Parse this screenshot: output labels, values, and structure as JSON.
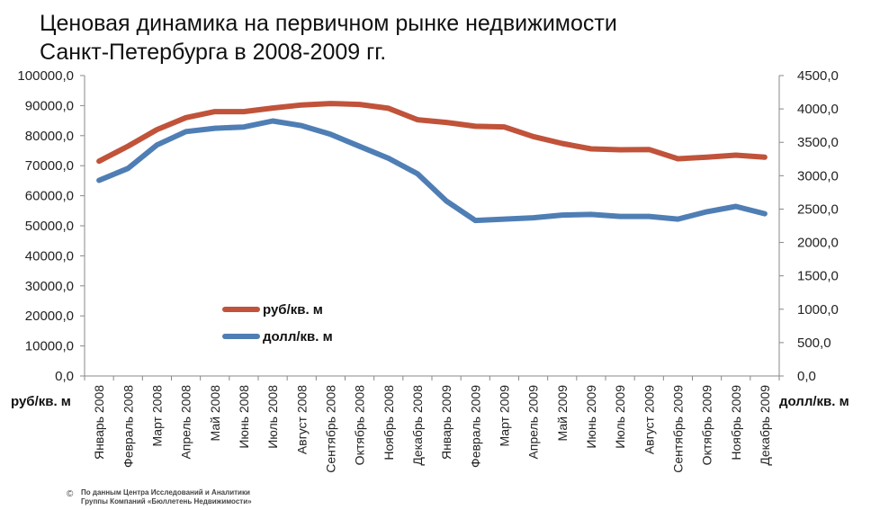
{
  "title": {
    "line1": "Ценовая динамика на первичном рынке недвижимости",
    "line2": "Санкт-Петербурга в 2008-2009 гг."
  },
  "units": {
    "left": "руб/кв. м",
    "right": "долл/кв. м"
  },
  "source": {
    "symbol": "©",
    "line1": "По данным Центра Исследований и Аналитики",
    "line2": "Группы Компаний «Бюллетень Недвижимости»"
  },
  "colors": {
    "rub": "#C0533A",
    "usd": "#4F7EB5",
    "axis": "#888888"
  },
  "chart_data": {
    "type": "line",
    "title": "Ценовая динамика на первичном рынке недвижимости Санкт-Петербурга в 2008-2009 гг.",
    "categories": [
      "Январь 2008",
      "Февраль 2008",
      "Март 2008",
      "Апрель 2008",
      "Май 2008",
      "Июнь 2008",
      "Июль 2008",
      "Август 2008",
      "Сентябрь 2008",
      "Октябрь 2008",
      "Ноябрь 2008",
      "Декабрь 2008",
      "Январь 2009",
      "Февраль 2009",
      "Март 2009",
      "Апрель 2009",
      "Май 2009",
      "Июнь 2009",
      "Июль 2009",
      "Август 2009",
      "Сентябрь 2009",
      "Октябрь 2009",
      "Ноябрь 2009",
      "Декабрь 2009"
    ],
    "series": [
      {
        "name": "руб/кв. м",
        "axis": "left",
        "values": [
          71500,
          76500,
          82000,
          86000,
          88000,
          88000,
          89200,
          90200,
          90700,
          90400,
          89100,
          85300,
          84400,
          83100,
          82900,
          79700,
          77400,
          75600,
          75300,
          75400,
          72300,
          72800,
          73500,
          72800
        ]
      },
      {
        "name": "долл/кв. м",
        "axis": "right",
        "values": [
          2930,
          3110,
          3460,
          3660,
          3710,
          3730,
          3820,
          3750,
          3620,
          3440,
          3260,
          3030,
          2620,
          2330,
          2350,
          2370,
          2410,
          2420,
          2390,
          2390,
          2350,
          2460,
          2540,
          2430
        ]
      }
    ],
    "y_left": {
      "min": 0,
      "max": 100000,
      "step": 10000,
      "ticks": [
        "0,0",
        "10000,0",
        "20000,0",
        "30000,0",
        "40000,0",
        "50000,0",
        "60000,0",
        "70000,0",
        "80000,0",
        "90000,0",
        "100000,0"
      ]
    },
    "y_right": {
      "min": 0,
      "max": 4500,
      "step": 500,
      "ticks": [
        "0,0",
        "500,0",
        "1000,0",
        "1500,0",
        "2000,0",
        "2500,0",
        "3000,0",
        "3500,0",
        "4000,0",
        "4500,0"
      ]
    },
    "grid": false,
    "legend_position": "lower-left-inside"
  }
}
